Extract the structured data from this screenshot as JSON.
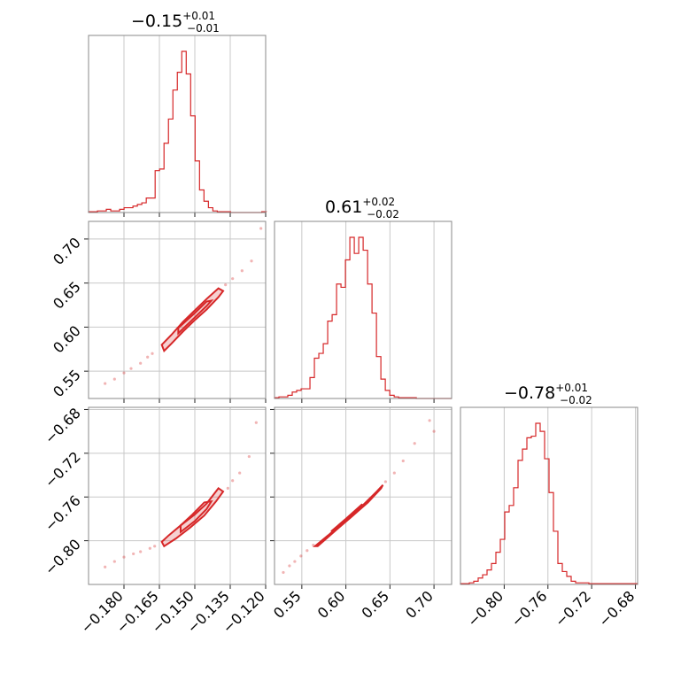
{
  "chart_data": {
    "type": "corner",
    "color": "#d62728",
    "parameters": [
      {
        "title_main": "−0.15",
        "title_sup": "+0.01",
        "title_sub": "−0.01",
        "range": [
          -0.195,
          -0.12
        ],
        "ticks": [
          -0.18,
          -0.165,
          -0.15,
          -0.135,
          -0.12
        ],
        "tick_labels": [
          "−0.180",
          "−0.165",
          "−0.150",
          "−0.135",
          "−0.120"
        ],
        "hist_step": 0.00188,
        "hist_heights": [
          0.005,
          0.005,
          0.01,
          0.01,
          0.02,
          0.01,
          0.01,
          0.02,
          0.03,
          0.03,
          0.04,
          0.05,
          0.06,
          0.09,
          0.09,
          0.26,
          0.27,
          0.43,
          0.58,
          0.76,
          0.87,
          1.0,
          0.86,
          0.6,
          0.32,
          0.14,
          0.07,
          0.03,
          0.01,
          0.005,
          0.005,
          0.005,
          0.0,
          0.0,
          0.0,
          0.0,
          0.0,
          0.0,
          0.0,
          0.005
        ]
      },
      {
        "title_main": "0.61",
        "title_sup": "+0.02",
        "title_sub": "−0.02",
        "range": [
          0.519,
          0.72
        ],
        "ticks": [
          0.55,
          0.6,
          0.65,
          0.7
        ],
        "tick_labels": [
          "0.55",
          "0.60",
          "0.65",
          "0.70"
        ],
        "hist_step": 0.00503,
        "hist_heights": [
          0.005,
          0.01,
          0.01,
          0.02,
          0.04,
          0.05,
          0.06,
          0.06,
          0.13,
          0.25,
          0.28,
          0.34,
          0.48,
          0.52,
          0.71,
          0.69,
          0.86,
          1.0,
          0.9,
          1.0,
          0.92,
          0.71,
          0.53,
          0.26,
          0.12,
          0.05,
          0.02,
          0.01,
          0.005,
          0.005,
          0.005,
          0.005,
          0.0,
          0.0,
          0.0,
          0.0,
          0.0,
          0.0,
          0.0,
          0.0
        ]
      },
      {
        "title_main": "−0.78",
        "title_sup": "+0.01",
        "title_sub": "−0.02",
        "range": [
          -0.84,
          -0.678
        ],
        "ticks": [
          -0.8,
          -0.76,
          -0.72,
          -0.68
        ],
        "tick_labels": [
          "−0.80",
          "−0.76",
          "−0.72",
          "−0.68"
        ],
        "hist_step": 0.00405,
        "hist_heights": [
          0.005,
          0.005,
          0.01,
          0.02,
          0.04,
          0.06,
          0.09,
          0.13,
          0.2,
          0.28,
          0.45,
          0.49,
          0.6,
          0.77,
          0.84,
          0.91,
          0.92,
          1.0,
          0.95,
          0.78,
          0.57,
          0.33,
          0.13,
          0.08,
          0.05,
          0.02,
          0.01,
          0.01,
          0.01,
          0.005,
          0.005,
          0.005,
          0.005,
          0.005,
          0.005,
          0.005,
          0.005,
          0.005,
          0.005,
          0.005
        ]
      }
    ],
    "pairs": [
      {
        "x": 0,
        "y": 1,
        "tails": [
          [
            -0.188,
            0.536
          ],
          [
            -0.184,
            0.541
          ],
          [
            -0.18,
            0.548
          ],
          [
            -0.177,
            0.553
          ],
          [
            -0.173,
            0.559
          ],
          [
            -0.17,
            0.566
          ],
          [
            -0.168,
            0.57
          ],
          [
            -0.137,
            0.648
          ],
          [
            -0.134,
            0.655
          ],
          [
            -0.13,
            0.664
          ],
          [
            -0.126,
            0.675
          ],
          [
            -0.122,
            0.712
          ]
        ],
        "contour_outer": [
          [
            -0.163,
            0.573
          ],
          [
            -0.16,
            0.581
          ],
          [
            -0.155,
            0.595
          ],
          [
            -0.15,
            0.608
          ],
          [
            -0.145,
            0.62
          ],
          [
            -0.14,
            0.634
          ],
          [
            -0.138,
            0.641
          ],
          [
            -0.14,
            0.644
          ],
          [
            -0.145,
            0.632
          ],
          [
            -0.15,
            0.619
          ],
          [
            -0.155,
            0.606
          ],
          [
            -0.16,
            0.591
          ],
          [
            -0.164,
            0.58
          ]
        ],
        "contour_inner": [
          [
            -0.157,
            0.593
          ],
          [
            -0.15,
            0.611
          ],
          [
            -0.145,
            0.624
          ],
          [
            -0.143,
            0.63
          ],
          [
            -0.145,
            0.629
          ],
          [
            -0.15,
            0.616
          ],
          [
            -0.157,
            0.599
          ]
        ]
      },
      {
        "x": 0,
        "y": 2,
        "tails": [
          [
            -0.188,
            -0.824
          ],
          [
            -0.184,
            -0.819
          ],
          [
            -0.18,
            -0.815
          ],
          [
            -0.176,
            -0.812
          ],
          [
            -0.173,
            -0.81
          ],
          [
            -0.169,
            -0.807
          ],
          [
            -0.167,
            -0.805
          ],
          [
            -0.136,
            -0.752
          ],
          [
            -0.134,
            -0.745
          ],
          [
            -0.131,
            -0.738
          ],
          [
            -0.127,
            -0.723
          ],
          [
            -0.124,
            -0.692
          ]
        ],
        "contour_outer": [
          [
            -0.163,
            -0.805
          ],
          [
            -0.158,
            -0.798
          ],
          [
            -0.152,
            -0.788
          ],
          [
            -0.146,
            -0.777
          ],
          [
            -0.141,
            -0.764
          ],
          [
            -0.138,
            -0.755
          ],
          [
            -0.14,
            -0.752
          ],
          [
            -0.145,
            -0.766
          ],
          [
            -0.15,
            -0.776
          ],
          [
            -0.156,
            -0.786
          ],
          [
            -0.161,
            -0.795
          ],
          [
            -0.164,
            -0.801
          ]
        ],
        "contour_inner": [
          [
            -0.156,
            -0.792
          ],
          [
            -0.15,
            -0.782
          ],
          [
            -0.145,
            -0.771
          ],
          [
            -0.143,
            -0.764
          ],
          [
            -0.146,
            -0.765
          ],
          [
            -0.151,
            -0.776
          ],
          [
            -0.156,
            -0.786
          ]
        ]
      },
      {
        "x": 1,
        "y": 2,
        "tails": [
          [
            0.529,
            -0.829
          ],
          [
            0.536,
            -0.823
          ],
          [
            0.542,
            -0.819
          ],
          [
            0.549,
            -0.814
          ],
          [
            0.556,
            -0.809
          ],
          [
            0.563,
            -0.804
          ],
          [
            0.645,
            -0.746
          ],
          [
            0.655,
            -0.738
          ],
          [
            0.665,
            -0.727
          ],
          [
            0.678,
            -0.711
          ],
          [
            0.695,
            -0.69
          ],
          [
            0.7,
            -0.7
          ]
        ],
        "contour_outer": [
          [
            0.565,
            -0.805
          ],
          [
            0.58,
            -0.795
          ],
          [
            0.6,
            -0.781
          ],
          [
            0.62,
            -0.767
          ],
          [
            0.635,
            -0.755
          ],
          [
            0.642,
            -0.749
          ],
          [
            0.64,
            -0.752
          ],
          [
            0.625,
            -0.765
          ],
          [
            0.605,
            -0.779
          ],
          [
            0.585,
            -0.793
          ],
          [
            0.568,
            -0.805
          ]
        ],
        "contour_inner": [
          [
            0.585,
            -0.792
          ],
          [
            0.605,
            -0.779
          ],
          [
            0.62,
            -0.768
          ],
          [
            0.618,
            -0.767
          ],
          [
            0.6,
            -0.78
          ],
          [
            0.584,
            -0.791
          ]
        ]
      }
    ]
  }
}
